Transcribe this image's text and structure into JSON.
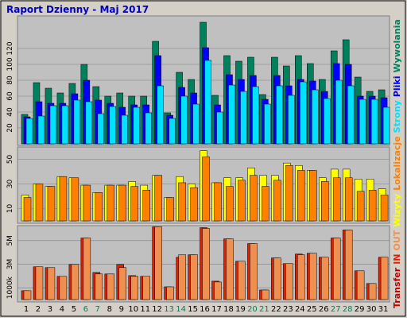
{
  "chart_data": [
    {
      "type": "bar",
      "title": "Raport Dzienny -  Maj 2017",
      "ylim": [
        0,
        160
      ],
      "yticks": [
        20,
        40,
        60,
        80,
        100,
        120
      ],
      "grid": true,
      "series": [
        {
          "name": "Wywolania",
          "color": "#00805c",
          "values": [
            37,
            77,
            70,
            64,
            76,
            100,
            72,
            60,
            64,
            60,
            60,
            129,
            39,
            90,
            81,
            153,
            61,
            111,
            104,
            109,
            62,
            109,
            98,
            111,
            101,
            81,
            117,
            131,
            84,
            66,
            68
          ]
        },
        {
          "name": "Pliki",
          "color": "#0000ff",
          "values": [
            34,
            53,
            51,
            51,
            63,
            80,
            55,
            51,
            46,
            49,
            49,
            111,
            36,
            71,
            64,
            121,
            49,
            87,
            81,
            86,
            56,
            86,
            73,
            81,
            79,
            66,
            101,
            100,
            60,
            60,
            58
          ]
        },
        {
          "name": "Strony",
          "color": "#00e0ff",
          "values": [
            32,
            35,
            48,
            48,
            55,
            53,
            38,
            47,
            36,
            46,
            39,
            73,
            32,
            60,
            50,
            105,
            40,
            74,
            66,
            72,
            50,
            73,
            61,
            78,
            68,
            57,
            80,
            73,
            56,
            56,
            46
          ]
        }
      ]
    },
    {
      "type": "bar",
      "ylim": [
        0,
        60
      ],
      "yticks": [
        10,
        30,
        50
      ],
      "grid": true,
      "series": [
        {
          "name": "Wizyty",
          "color": "#ffff00",
          "values": [
            21,
            30,
            28,
            36,
            35,
            29,
            23,
            29,
            29,
            32,
            29,
            37,
            19,
            36,
            30,
            57,
            31,
            35,
            35,
            43,
            37,
            37,
            47,
            45,
            41,
            35,
            42,
            42,
            34,
            34,
            26
          ]
        },
        {
          "name": "Lokalizacje",
          "color": "#ff8000",
          "values": [
            19,
            30,
            28,
            36,
            35,
            29,
            23,
            29,
            29,
            28,
            25,
            37,
            19,
            31,
            27,
            52,
            31,
            28,
            33,
            37,
            28,
            33,
            45,
            41,
            41,
            32,
            35,
            35,
            24,
            25,
            21
          ]
        }
      ]
    },
    {
      "type": "bar",
      "label": "Transfer",
      "label_color": "#c00000",
      "ylim": [
        0,
        6200
      ],
      "yticks": [
        {
          "value": 1000,
          "label": "1000k"
        },
        {
          "value": 3000,
          "label": "3M"
        },
        {
          "value": 5000,
          "label": "5M"
        }
      ],
      "grid": true,
      "categories": [
        "1",
        "2",
        "3",
        "4",
        "5",
        "6",
        "7",
        "8",
        "9",
        "10",
        "11",
        "12",
        "13",
        "14",
        "15",
        "16",
        "17",
        "18",
        "19",
        "20",
        "21",
        "22",
        "23",
        "24",
        "25",
        "26",
        "27",
        "28",
        "29",
        "30",
        "31"
      ],
      "category_colors": [
        "#000000",
        "#000000",
        "#000000",
        "#000000",
        "#000000",
        "#00805c",
        "#00805c",
        "#000000",
        "#000000",
        "#000000",
        "#000000",
        "#000000",
        "#00805c",
        "#00805c",
        "#000000",
        "#000000",
        "#000000",
        "#000000",
        "#000000",
        "#00805c",
        "#00805c",
        "#000000",
        "#000000",
        "#000000",
        "#000000",
        "#000000",
        "#00805c",
        "#00805c",
        "#000000",
        "#000000",
        "#000000"
      ],
      "series": [
        {
          "name": "IN",
          "color": "#e02000",
          "values": [
            750,
            2780,
            2710,
            1970,
            2980,
            5220,
            2300,
            2170,
            2980,
            2030,
            1970,
            6170,
            1080,
            3590,
            3800,
            6100,
            1560,
            5150,
            3250,
            4750,
            810,
            3530,
            3050,
            3860,
            3930,
            3590,
            5220,
            5900,
            2440,
            1360,
            3590
          ]
        },
        {
          "name": "OUT",
          "color": "#f09050",
          "values": [
            750,
            2780,
            2710,
            1970,
            2980,
            5220,
            2170,
            2170,
            2710,
            1970,
            1970,
            6170,
            1080,
            3800,
            3800,
            6030,
            1490,
            5150,
            3250,
            4750,
            810,
            3530,
            3050,
            3800,
            3930,
            3590,
            5220,
            5900,
            2440,
            1360,
            3590
          ]
        }
      ]
    }
  ]
}
